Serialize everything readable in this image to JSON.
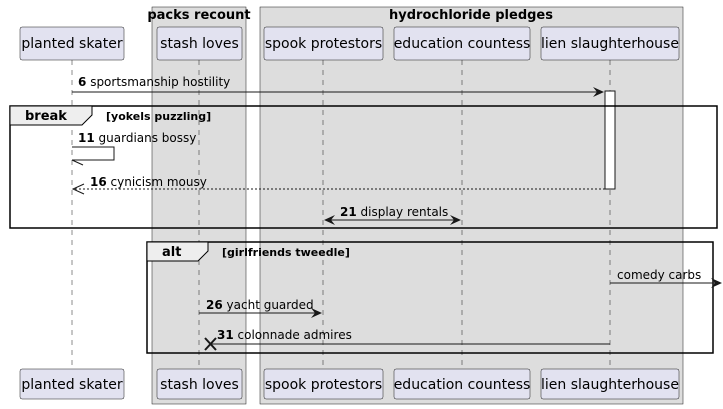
{
  "boxes": {
    "packs_title": "packs recount",
    "hydro_title": "hydrochloride pledges"
  },
  "participants": {
    "planted_skater": "planted skater",
    "stash_loves": "stash loves",
    "spook_protestors": "spook protestors",
    "education_countess": "education countess",
    "lien_slaughterhouse": "lien slaughterhouse"
  },
  "messages": [
    {
      "num": "6",
      "text": "sportsmanship hostility"
    },
    {
      "num": "11",
      "text": "guardians bossy"
    },
    {
      "num": "16",
      "text": "cynicism mousy"
    },
    {
      "num": "21",
      "text": "display rentals"
    },
    {
      "num": "",
      "text": "comedy carbs"
    },
    {
      "num": "26",
      "text": "yacht guarded"
    },
    {
      "num": "31",
      "text": "colonnade admires"
    }
  ],
  "fragments": {
    "break_kw": "break",
    "break_cond": "[yokels puzzling]",
    "alt_kw": "alt",
    "alt_cond": "[girlfriends tweedle]"
  },
  "colors": {
    "box_fill": "#dddddd",
    "participant_fill": "#e2e2f0",
    "line": "#181818"
  }
}
